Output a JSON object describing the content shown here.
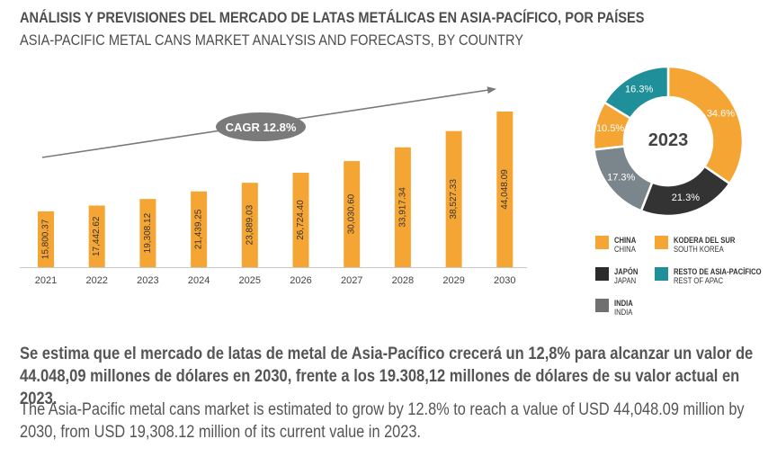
{
  "header": {
    "title_es": "ANÁLISIS Y PREVISIONES DEL MERCADO DE LATAS METÁLICAS EN ASIA-PACÍFICO, POR PAÍSES",
    "title_en": "ASIA-PACIFIC METAL CANS MARKET ANALYSIS AND FORECASTS, BY COUNTRY"
  },
  "chart_data": [
    {
      "type": "bar",
      "categories": [
        "2021",
        "2022",
        "2023",
        "2024",
        "2025",
        "2026",
        "2027",
        "2028",
        "2029",
        "2030"
      ],
      "values": [
        15800.37,
        17442.62,
        19308.12,
        21439.25,
        23889.03,
        26724.4,
        30030.6,
        33917.34,
        38527.33,
        44048.09
      ],
      "value_labels": [
        "15,800.37",
        "17,442.62",
        "19,308.12",
        "21,439.25",
        "23,889.03",
        "26,724.40",
        "30,030.60",
        "33,917.34",
        "38,527.33",
        "44,048.09"
      ],
      "bar_color": "#f5a533",
      "annotation": "CAGR 12.8%",
      "xlabel": "",
      "ylabel": "",
      "ylim": [
        0,
        44048.09
      ]
    },
    {
      "type": "pie",
      "subtype": "donut",
      "center_label": "2023",
      "slices": [
        {
          "name_es": "KODERA DEL SUR",
          "name_en": "SOUTH KOREA",
          "value": 34.6,
          "label": "34.6%",
          "color": "#f5a533"
        },
        {
          "name_es": "JAPÓN",
          "name_en": "JAPAN",
          "value": 21.3,
          "label": "21.3%",
          "color": "#333333"
        },
        {
          "name_es": "INDIA",
          "name_en": "INDIA",
          "value": 17.3,
          "label": "17.3%",
          "color": "#7b868c"
        },
        {
          "name_es": "CHINA",
          "name_en": "CHINA",
          "value": 10.5,
          "label": "10.5%",
          "color": "#f5a533"
        },
        {
          "name_es": "RESTO DE ASIA-PACÍFICO",
          "name_en": "REST OF APAC",
          "value": 16.3,
          "label": "16.3%",
          "color": "#1f8f99"
        }
      ]
    }
  ],
  "legend": {
    "items": [
      {
        "es": "CHINA",
        "en": "CHINA",
        "color": "#f5a533"
      },
      {
        "es": "KODERA DEL SUR",
        "en": "SOUTH KOREA",
        "color": "#f5a533"
      },
      {
        "es": "JAPÓN",
        "en": "JAPAN",
        "color": "#2b2b2b"
      },
      {
        "es": "RESTO DE ASIA-PACÍFICO",
        "en": "REST OF APAC",
        "color": "#1f8f99"
      },
      {
        "es": "INDIA",
        "en": "INDIA",
        "color": "#707070"
      }
    ]
  },
  "summary": {
    "es": "Se estima que el mercado de latas de metal de Asia-Pacífico crecerá un 12,8% para alcanzar un valor de 44.048,09 millones de dólares en 2030, frente a los 19.308,12 millones de dólares de su valor actual en 2023.",
    "en": "The Asia-Pacific metal cans market is estimated to grow by 12.8% to reach a value of USD 44,048.09 million by 2030, from USD 19,308.12 million of its current value in 2023."
  }
}
